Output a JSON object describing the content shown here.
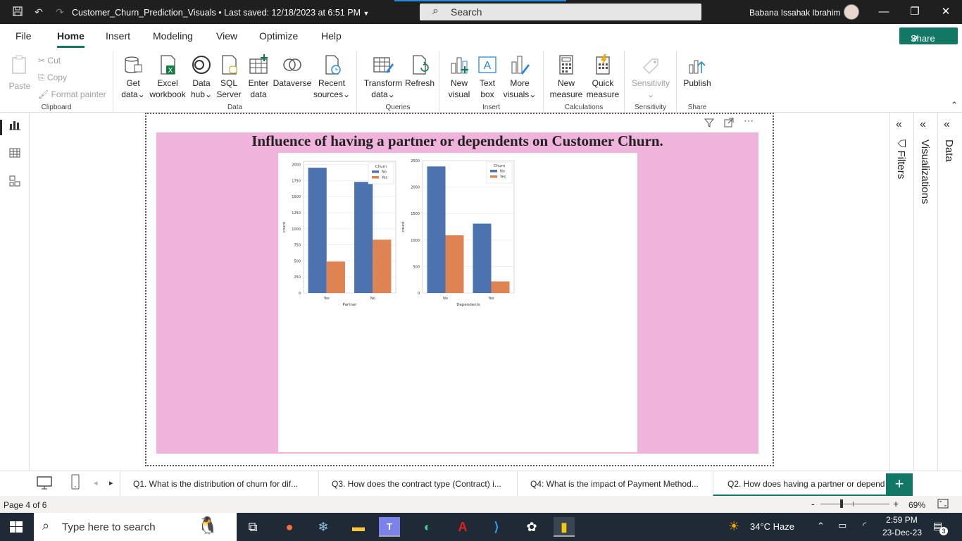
{
  "titlebar": {
    "document": "Customer_Churn_Prediction_Visuals",
    "saved": "Last saved: 12/18/2023 at 6:51 PM",
    "search": "Search",
    "user": "Babana Issahak Ibrahim"
  },
  "menu": {
    "tabs": [
      "File",
      "Home",
      "Insert",
      "Modeling",
      "View",
      "Optimize",
      "Help"
    ],
    "active": "Home",
    "share": "Share"
  },
  "ribbon": {
    "clipboard": {
      "paste": "Paste",
      "cut": "Cut",
      "copy": "Copy",
      "format_painter": "Format painter",
      "label": "Clipboard"
    },
    "data": {
      "get_data": [
        "Get",
        "data"
      ],
      "excel": [
        "Excel",
        "workbook"
      ],
      "data_hub": [
        "Data",
        "hub"
      ],
      "sql": [
        "SQL",
        "Server"
      ],
      "enter": [
        "Enter",
        "data"
      ],
      "dataverse": "Dataverse",
      "recent": [
        "Recent",
        "sources"
      ],
      "label": "Data"
    },
    "queries": {
      "transform": [
        "Transform",
        "data"
      ],
      "refresh": "Refresh",
      "label": "Queries"
    },
    "insert": {
      "new_visual": [
        "New",
        "visual"
      ],
      "text_box": [
        "Text",
        "box"
      ],
      "more_visuals": [
        "More",
        "visuals"
      ],
      "label": "Insert"
    },
    "calculations": {
      "new_measure": [
        "New",
        "measure"
      ],
      "quick_measure": [
        "Quick",
        "measure"
      ],
      "label": "Calculations"
    },
    "sensitivity": {
      "btn": "Sensitivity",
      "label": "Sensitivity"
    },
    "share": {
      "publish": "Publish",
      "label": "Share"
    }
  },
  "report": {
    "title": "Influence of having a partner or dependents on Customer Churn."
  },
  "panes": {
    "filters": "Filters",
    "visualizations": "Visualizations",
    "data": "Data"
  },
  "page_tabs": [
    "Q1. What is the distribution of churn for dif...",
    "Q3. How does the contract type (Contract) i...",
    "Q4: What is the impact of Payment Method...",
    "Q2. How does having a partner or depend"
  ],
  "status": {
    "page": "Page 4 of 6",
    "zoom": "69%"
  },
  "taskbar": {
    "search": "Type here to search",
    "weather": "34°C  Haze",
    "time": "2:59 PM",
    "date": "23-Dec-23",
    "notifications": "3"
  },
  "colors": {
    "accent": "#117865",
    "page_bg": "#f0b3db",
    "no": "#4c72b0",
    "yes": "#dd8452"
  },
  "chart_data": [
    {
      "type": "bar",
      "xlabel": "Partner",
      "ylabel": "count",
      "categories": [
        "Yes",
        "No"
      ],
      "legend_title": "Churn",
      "legend_position": "top-right",
      "yticks": [
        "0",
        "250",
        "500",
        "750",
        "1000",
        "1250",
        "1500",
        "1750",
        "2000"
      ],
      "ylim": [
        0,
        2050
      ],
      "series": [
        {
          "name": "No",
          "values": [
            1950,
            1730
          ]
        },
        {
          "name": "Yes",
          "values": [
            490,
            830
          ]
        }
      ]
    },
    {
      "type": "bar",
      "xlabel": "Dependents",
      "ylabel": "count",
      "categories": [
        "No",
        "Yes"
      ],
      "legend_title": "Churn",
      "legend_position": "top-right",
      "yticks": [
        "0",
        "500",
        "1000",
        "1500",
        "2000",
        "2500"
      ],
      "ylim": [
        0,
        2500
      ],
      "series": [
        {
          "name": "No",
          "values": [
            2390,
            1310
          ]
        },
        {
          "name": "Yes",
          "values": [
            1090,
            220
          ]
        }
      ]
    }
  ]
}
